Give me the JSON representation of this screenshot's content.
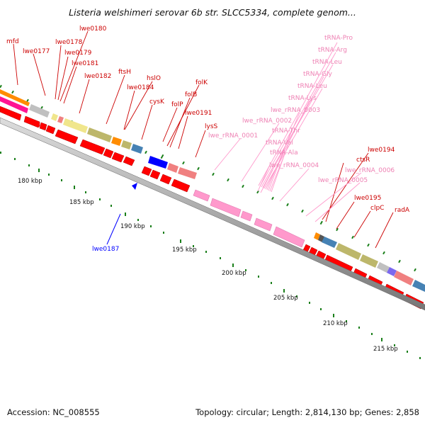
{
  "title": "Listeria welshimeri serovar 6b str. SLCC5334, complete genom...",
  "footer": {
    "accession": "Accession: NC_008555",
    "summary": "Topology: circular; Length: 2,814,130 bp; Genes: 2,858"
  },
  "colors": {
    "gene_forward": "#ff0000",
    "gene_label": "#cc0000",
    "rrna": "#ff99cc",
    "rrna_label": "#ee82b4",
    "highlight_gene": "#0000ff",
    "tick_major": "#1a7f1a",
    "backbone": "#999999",
    "cog_orange": "#ff8c00",
    "cog_khaki": "#bdb76b",
    "cog_steelblue": "#4682b4",
    "cog_salmon": "#f08080",
    "cog_khaki_light": "#f0e68c",
    "cog_gray": "#c0c0c0",
    "cog_purple": "#7b68ee",
    "cog_blue": "#0000ff",
    "cog_pink": "#ff1493"
  },
  "scale_labels": [
    "180 kbp",
    "185 kbp",
    "190 kbp",
    "195 kbp",
    "200 kbp",
    "205 kbp",
    "210 kbp",
    "215 kbp"
  ],
  "gene_labels": [
    "mfd",
    "lwe0177",
    "lwe0178",
    "lwe0180",
    "lwe0179",
    "lwe0181",
    "lwe0182",
    "ftsH",
    "hslO",
    "lwe0184",
    "folK",
    "folB",
    "cysK",
    "folP",
    "lwe0191",
    "lysS",
    "lwe0194",
    "ctsR",
    "lwe0195",
    "clpC",
    "radA"
  ],
  "rna_labels": [
    "tRNA-Pro",
    "tRNA-Arg",
    "tRNA-Leu",
    "tRNA-Gly",
    "tRNA-Leu",
    "tRNA-Lys",
    "lwe_rRNA_0003",
    "lwe_rRNA_0002",
    "lwe_rRNA_0001",
    "tRNA-Thr",
    "tRNA-Val",
    "tRNA-Ala",
    "lwe_rRNA_0004",
    "lwe_rRNA_0006",
    "lwe_rRNA_0005"
  ],
  "highlight_label": "lwe0187"
}
